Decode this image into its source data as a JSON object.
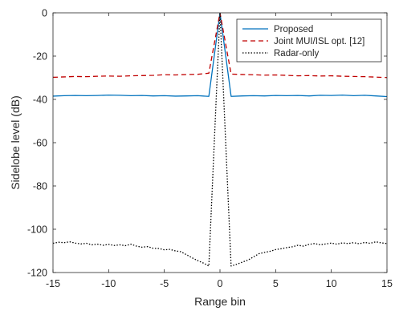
{
  "chart_data": {
    "type": "line",
    "xlabel": "Range bin",
    "ylabel": "Sidelobe level (dB)",
    "xlim": [
      -15,
      15
    ],
    "ylim": [
      -120,
      0
    ],
    "xticks": [
      -15,
      -10,
      -5,
      0,
      5,
      10,
      15
    ],
    "yticks": [
      0,
      -20,
      -40,
      -60,
      -80,
      -100,
      -120
    ],
    "xtick_labels": [
      "-15",
      "-10",
      "-5",
      "0",
      "5",
      "10",
      "15"
    ],
    "ytick_labels": [
      "0",
      "-20",
      "-40",
      "-60",
      "-80",
      "-100",
      "-120"
    ],
    "grid": false,
    "box": true,
    "legend_position": "top-right",
    "series": [
      {
        "name": "Proposed",
        "color": "#0072BD",
        "style": "solid",
        "x": [
          -15,
          -14,
          -13,
          -12,
          -11,
          -10,
          -9,
          -8,
          -7,
          -6,
          -5,
          -4,
          -3,
          -2,
          -1,
          0,
          1,
          2,
          3,
          4,
          5,
          6,
          7,
          8,
          9,
          10,
          11,
          12,
          13,
          14,
          15
        ],
        "y": [
          -38.5,
          -38.3,
          -38.2,
          -38.3,
          -38.2,
          -38.0,
          -38.1,
          -38.3,
          -38.2,
          -38.4,
          -38.3,
          -38.5,
          -38.4,
          -38.3,
          -38.6,
          0,
          -38.6,
          -38.4,
          -38.3,
          -38.4,
          -38.2,
          -38.3,
          -38.2,
          -38.4,
          -38.1,
          -38.2,
          -38.0,
          -38.3,
          -38.1,
          -38.4,
          -38.7
        ]
      },
      {
        "name": "Joint MUI/ISL opt. [12]",
        "color": "#C00000",
        "style": "dashed",
        "x": [
          -15,
          -14,
          -13,
          -12,
          -11,
          -10,
          -9,
          -8,
          -7,
          -6,
          -5,
          -4,
          -3,
          -2,
          -1,
          0,
          1,
          2,
          3,
          4,
          5,
          6,
          7,
          8,
          9,
          10,
          11,
          12,
          13,
          14,
          15
        ],
        "y": [
          -29.8,
          -29.6,
          -29.4,
          -29.5,
          -29.3,
          -29.2,
          -29.3,
          -29.1,
          -29.0,
          -28.9,
          -28.6,
          -28.7,
          -28.5,
          -28.4,
          -27.9,
          0,
          -28.3,
          -28.5,
          -28.6,
          -28.8,
          -28.7,
          -28.9,
          -29.1,
          -29.0,
          -29.2,
          -29.1,
          -29.3,
          -29.4,
          -29.5,
          -29.7,
          -29.9
        ]
      },
      {
        "name": "Radar-only",
        "color": "#000000",
        "style": "dotted",
        "x": [
          -15,
          -14.5,
          -14,
          -13.5,
          -13,
          -12.5,
          -12,
          -11.5,
          -11,
          -10.5,
          -10,
          -9.5,
          -9,
          -8.5,
          -8,
          -7.5,
          -7,
          -6.5,
          -6,
          -5.5,
          -5,
          -4.5,
          -4,
          -3.5,
          -3,
          -2.5,
          -2,
          -1.5,
          -1,
          0,
          1,
          1.5,
          2,
          2.5,
          3,
          3.5,
          4,
          4.5,
          5,
          5.5,
          6,
          6.5,
          7,
          7.5,
          8,
          8.5,
          9,
          9.5,
          10,
          10.5,
          11,
          11.5,
          12,
          12.5,
          13,
          13.5,
          14,
          14.5,
          15
        ],
        "y": [
          -106.5,
          -106.0,
          -106.2,
          -105.8,
          -106.4,
          -106.8,
          -106.5,
          -107.2,
          -106.9,
          -107.4,
          -107.0,
          -107.5,
          -107.2,
          -107.6,
          -106.9,
          -107.8,
          -108.3,
          -108.0,
          -108.8,
          -108.9,
          -109.5,
          -109.3,
          -110.0,
          -110.4,
          -111.8,
          -113.2,
          -114.5,
          -115.6,
          -117.0,
          0,
          -117.0,
          -116.2,
          -115.2,
          -114.3,
          -112.8,
          -111.3,
          -110.7,
          -110.2,
          -109.4,
          -109.0,
          -108.5,
          -108.1,
          -107.4,
          -107.8,
          -107.0,
          -106.6,
          -107.2,
          -106.8,
          -106.4,
          -106.9,
          -106.3,
          -106.6,
          -106.2,
          -106.7,
          -106.1,
          -106.5,
          -105.8,
          -106.3,
          -106.6
        ]
      }
    ]
  }
}
